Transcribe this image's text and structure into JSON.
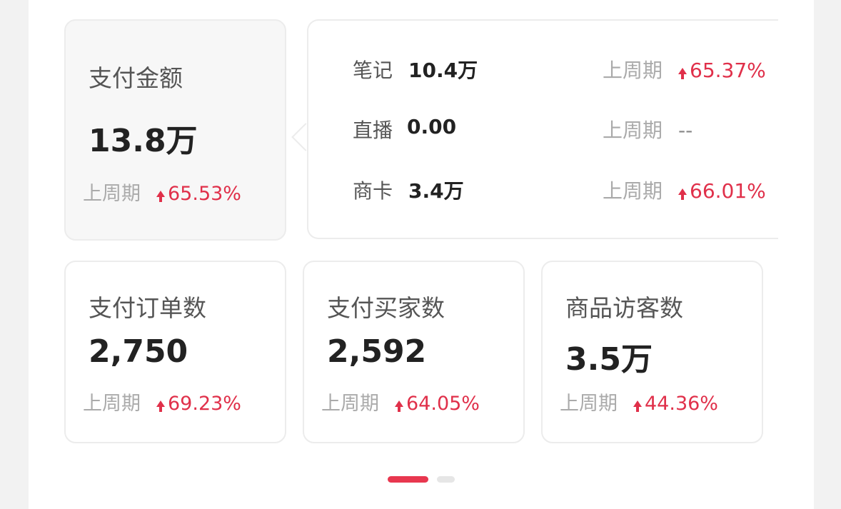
{
  "accent_color": "#e0304a",
  "main_card": {
    "title": "支付金额",
    "value": "13.8万",
    "compare_label": "上周期",
    "change": "65.53%",
    "trend": "up"
  },
  "breakdown": [
    {
      "label": "笔记",
      "value": "10.4万",
      "compare_label": "上周期",
      "change": "65.37%",
      "trend": "up"
    },
    {
      "label": "直播",
      "value": "0.00",
      "compare_label": "上周期",
      "change": "--",
      "trend": "none"
    },
    {
      "label": "商卡",
      "value": "3.4万",
      "compare_label": "上周期",
      "change": "66.01%",
      "trend": "up"
    }
  ],
  "cards": [
    {
      "title": "支付订单数",
      "value": "2,750",
      "compare_label": "上周期",
      "change": "69.23%",
      "trend": "up"
    },
    {
      "title": "支付买家数",
      "value": "2,592",
      "compare_label": "上周期",
      "change": "64.05%",
      "trend": "up"
    },
    {
      "title": "商品访客数",
      "value": "3.5万",
      "compare_label": "上周期",
      "change": "44.36%",
      "trend": "up"
    }
  ],
  "pagination": {
    "current": 1,
    "total": 2
  }
}
